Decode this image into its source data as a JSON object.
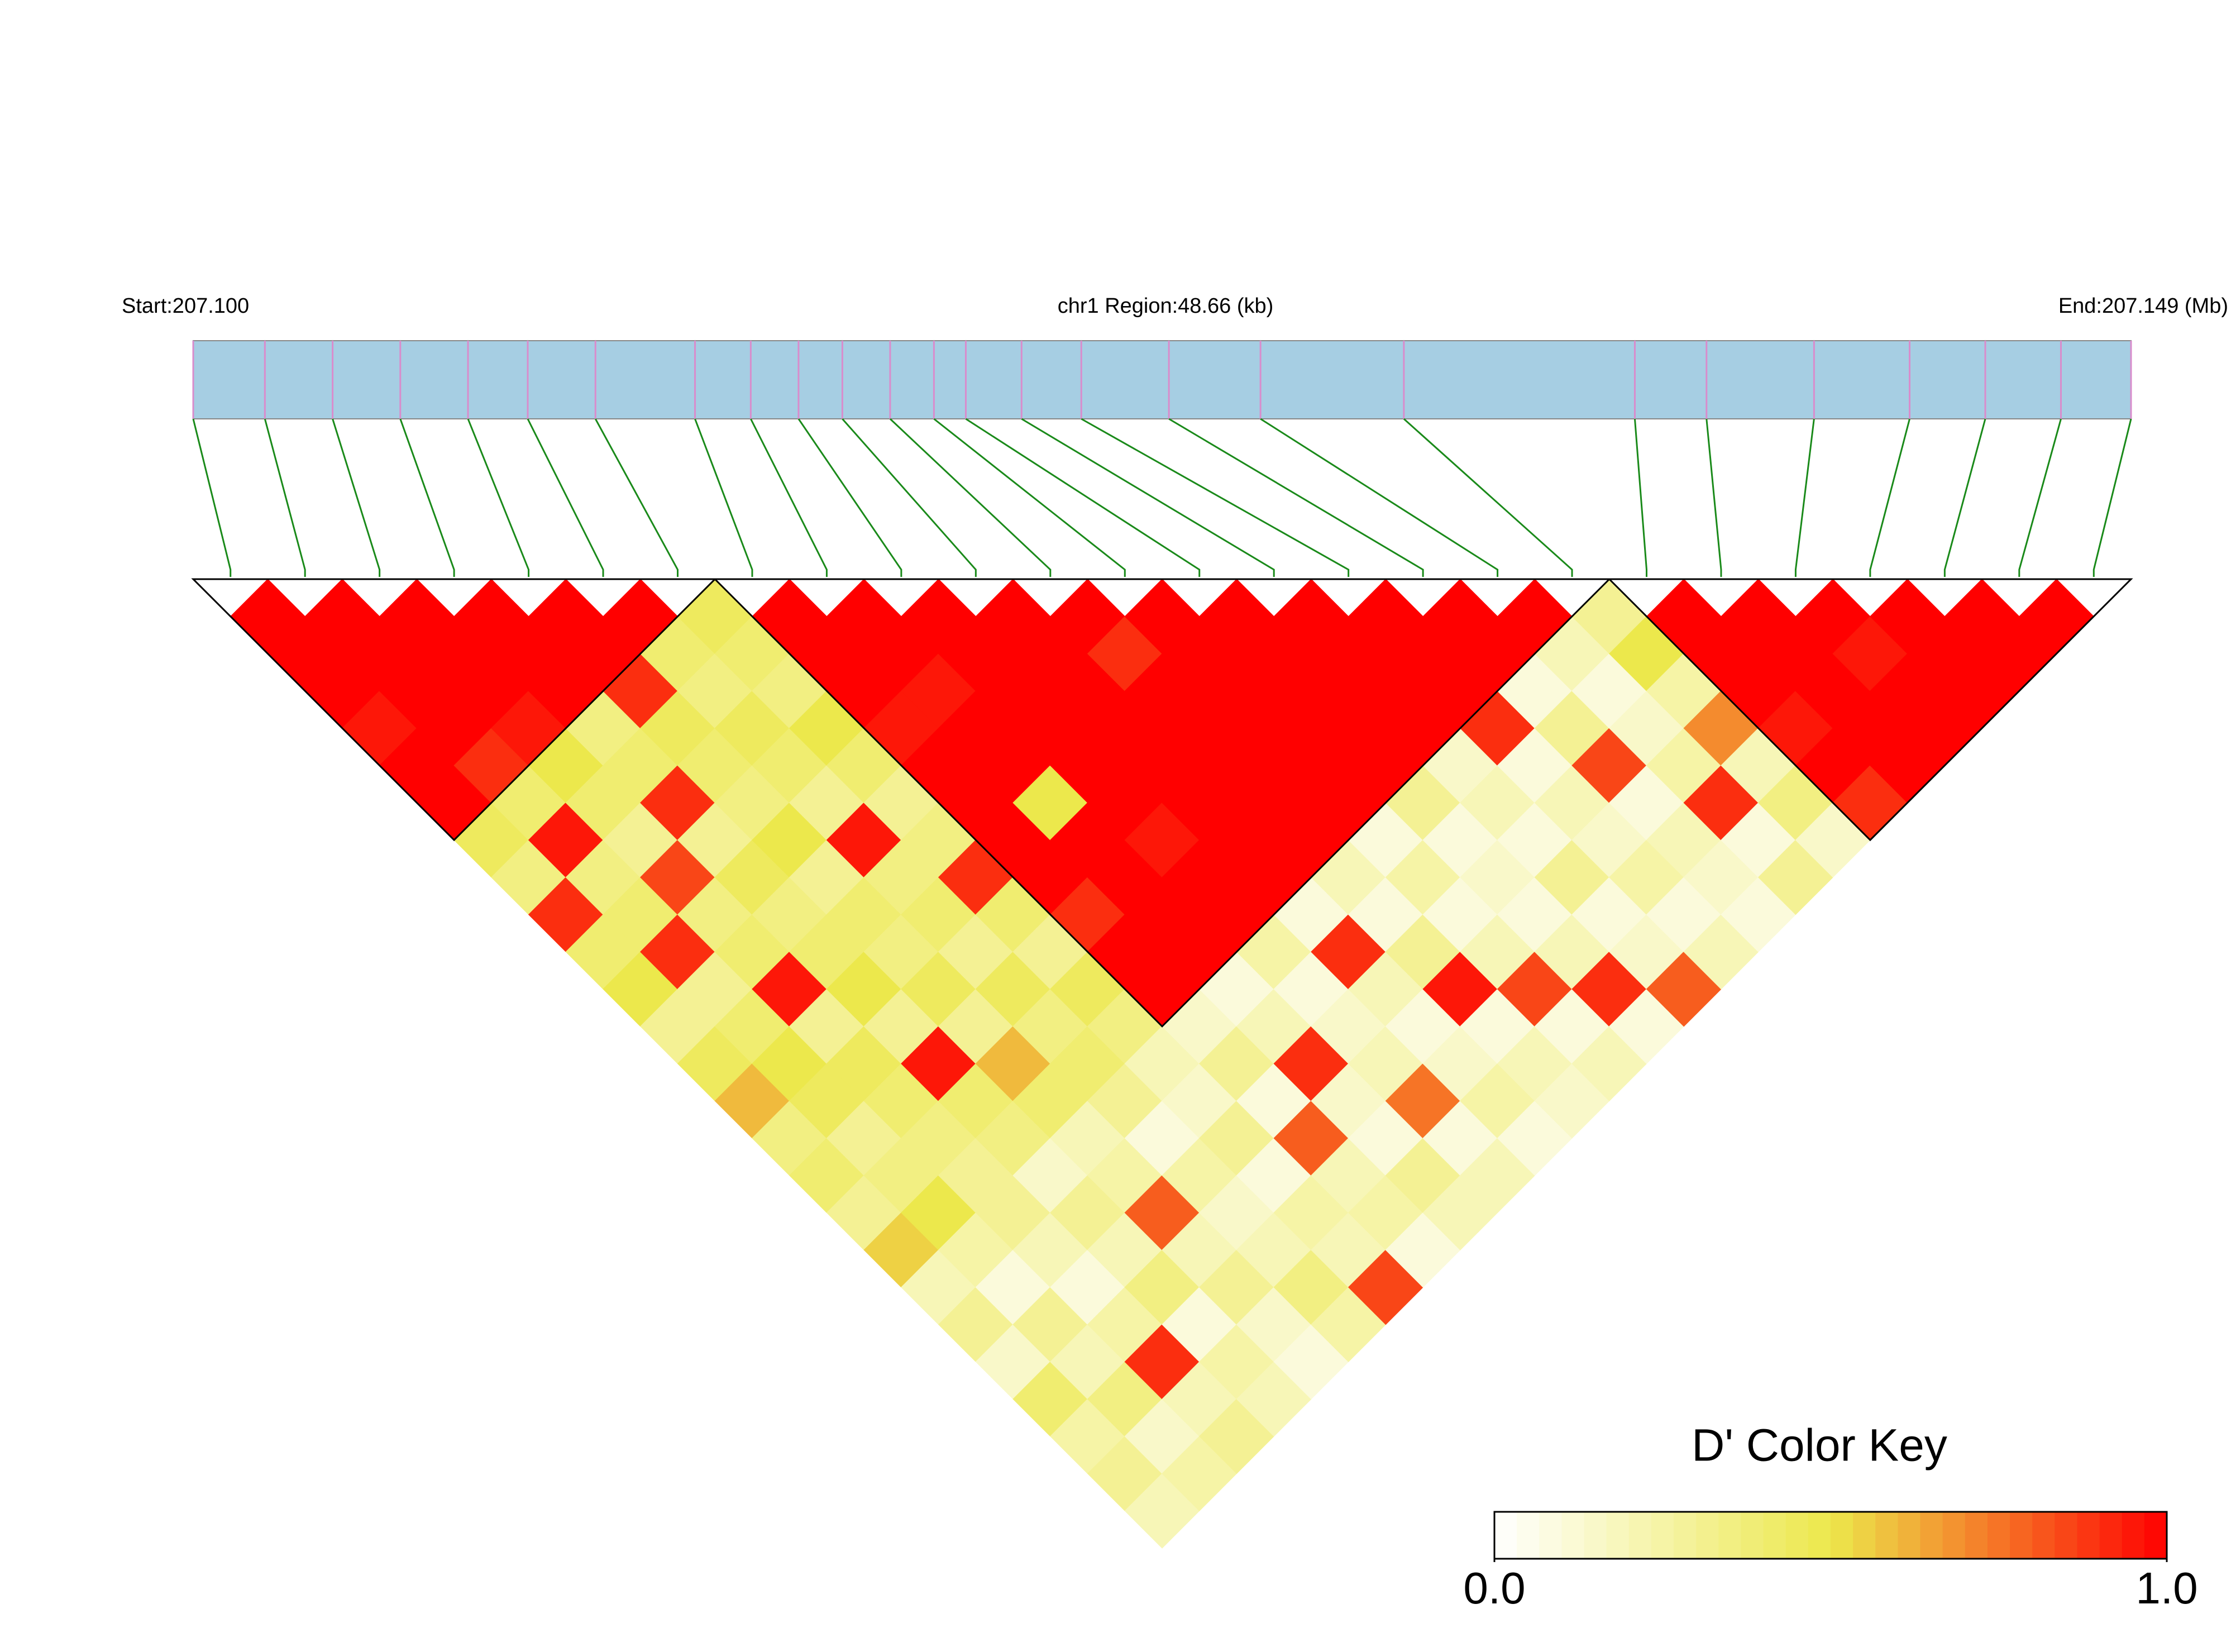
{
  "chart_data": {
    "type": "ld_heatmap",
    "start_label": "Start:207.100",
    "region_label": "chr1 Region:48.66 (kb)",
    "end_label": "End:207.149 (Mb)",
    "xlim": [
      0,
      48.66
    ],
    "snp_positions_kb": [
      0,
      1.8,
      3.5,
      5.2,
      6.9,
      8.4,
      10.1,
      12.6,
      14.0,
      15.2,
      16.3,
      17.5,
      18.6,
      19.4,
      20.8,
      22.3,
      24.5,
      26.8,
      30.4,
      36.2,
      38.0,
      40.7,
      43.1,
      45.0,
      46.9,
      48.66
    ],
    "dprime": [
      [
        1,
        1,
        1,
        0.95,
        1,
        1,
        0.45,
        0.35,
        0.9,
        0.4,
        0.5,
        0.3,
        0.45,
        0.6,
        0.35,
        0.4,
        0.3,
        0.55,
        0.2,
        0.3,
        0.15,
        0.4,
        0.25,
        0.3,
        0.2
      ],
      [
        1,
        1,
        1,
        1,
        0.9,
        0.4,
        0.95,
        0.35,
        0.4,
        0.9,
        0.3,
        0.4,
        0.5,
        0.45,
        0.3,
        0.35,
        0.5,
        0.25,
        0.1,
        0.3,
        0.2,
        0.35,
        0.15,
        0.25
      ],
      [
        1,
        1,
        1,
        0.95,
        0.5,
        0.4,
        0.3,
        0.85,
        0.35,
        0.4,
        0.95,
        0.3,
        0.45,
        0.4,
        0.35,
        0.3,
        0.3,
        0.2,
        0.1,
        0.25,
        0.9,
        0.2,
        0.3
      ],
      [
        1,
        1,
        1,
        0.35,
        0.4,
        0.9,
        0.3,
        0.45,
        0.35,
        0.4,
        0.5,
        0.3,
        0.95,
        0.4,
        0.35,
        0.15,
        0.3,
        0.2,
        0.35,
        0.1,
        0.25,
        0.2
      ],
      [
        1,
        1,
        0.9,
        0.45,
        0.4,
        0.35,
        0.5,
        0.3,
        0.4,
        0.35,
        0.45,
        0.3,
        0.6,
        0.4,
        0.2,
        0.25,
        0.8,
        0.2,
        0.3,
        0.15,
        0.1
      ],
      [
        1,
        0.4,
        0.35,
        0.45,
        0.4,
        0.3,
        0.95,
        0.35,
        0.4,
        0.3,
        0.45,
        0.35,
        0.4,
        0.3,
        0.1,
        0.25,
        0.15,
        0.2,
        0.35,
        0.25
      ],
      [
        0.45,
        0.4,
        0.35,
        0.5,
        0.4,
        0.3,
        0.35,
        0.9,
        0.4,
        0.3,
        0.45,
        0.35,
        0.2,
        0.15,
        0.3,
        0.1,
        0.25,
        0.2,
        0.85
      ],
      [
        1,
        1,
        1,
        0.95,
        1,
        1,
        1,
        1,
        0.9,
        1,
        1,
        0.15,
        0.3,
        0.1,
        0.8,
        0.2,
        0.25,
        0.1
      ],
      [
        1,
        1,
        0.95,
        1,
        1,
        0.5,
        1,
        1,
        1,
        1,
        0.1,
        0.2,
        0.9,
        0.15,
        0.1,
        0.3,
        0.2
      ],
      [
        1,
        1,
        1,
        1,
        1,
        1,
        0.95,
        1,
        1,
        0.25,
        0.1,
        0.15,
        0.2,
        0.75,
        0.1,
        0.2
      ],
      [
        1,
        1,
        1,
        1,
        1,
        1,
        1,
        1,
        0.1,
        0.9,
        0.2,
        0.1,
        0.15,
        0.25,
        0.1
      ],
      [
        1,
        0.9,
        1,
        1,
        1,
        1,
        1,
        0.2,
        0.1,
        0.3,
        0.95,
        0.1,
        0.2,
        0.15
      ],
      [
        1,
        1,
        1,
        1,
        1,
        1,
        0.1,
        0.25,
        0.1,
        0.2,
        0.85,
        0.1,
        0.2
      ],
      [
        1,
        1,
        1,
        1,
        1,
        0.3,
        0.1,
        0.15,
        0.1,
        0.2,
        0.9,
        0.1
      ],
      [
        1,
        1,
        1,
        1,
        0.15,
        0.2,
        0.1,
        0.3,
        0.1,
        0.15,
        0.8
      ],
      [
        1,
        1,
        1,
        0.9,
        0.1,
        0.2,
        0.15,
        0.25,
        0.1,
        0.2
      ],
      [
        1,
        1,
        0.1,
        0.3,
        0.85,
        0.1,
        0.2,
        0.15,
        0.1
      ],
      [
        1,
        0.2,
        0.1,
        0.15,
        0.25,
        0.9,
        0.1,
        0.3
      ],
      [
        0.3,
        0.5,
        0.25,
        0.7,
        0.2,
        0.35,
        0.15
      ],
      [
        1,
        1,
        1,
        0.95,
        1,
        0.9
      ],
      [
        1,
        1,
        1,
        1,
        1
      ],
      [
        1,
        0.95,
        1,
        1
      ],
      [
        1,
        1,
        1
      ],
      [
        1,
        1
      ],
      [
        1
      ]
    ],
    "ld_blocks": [
      [
        0,
        6
      ],
      [
        7,
        18
      ],
      [
        19,
        25
      ]
    ],
    "bar_color": "#a6cee3",
    "snp_color": "#d98ccc",
    "link_color": "#1a8a1a",
    "colors": [
      "#ffffff",
      "#ece84c",
      "#ff0000"
    ],
    "color_key": {
      "title": "D' Color Key",
      "lim": [
        0,
        1
      ],
      "ticks": [
        {
          "value": 0,
          "label": "0.0"
        },
        {
          "value": 1,
          "label": "1.0"
        }
      ]
    }
  }
}
